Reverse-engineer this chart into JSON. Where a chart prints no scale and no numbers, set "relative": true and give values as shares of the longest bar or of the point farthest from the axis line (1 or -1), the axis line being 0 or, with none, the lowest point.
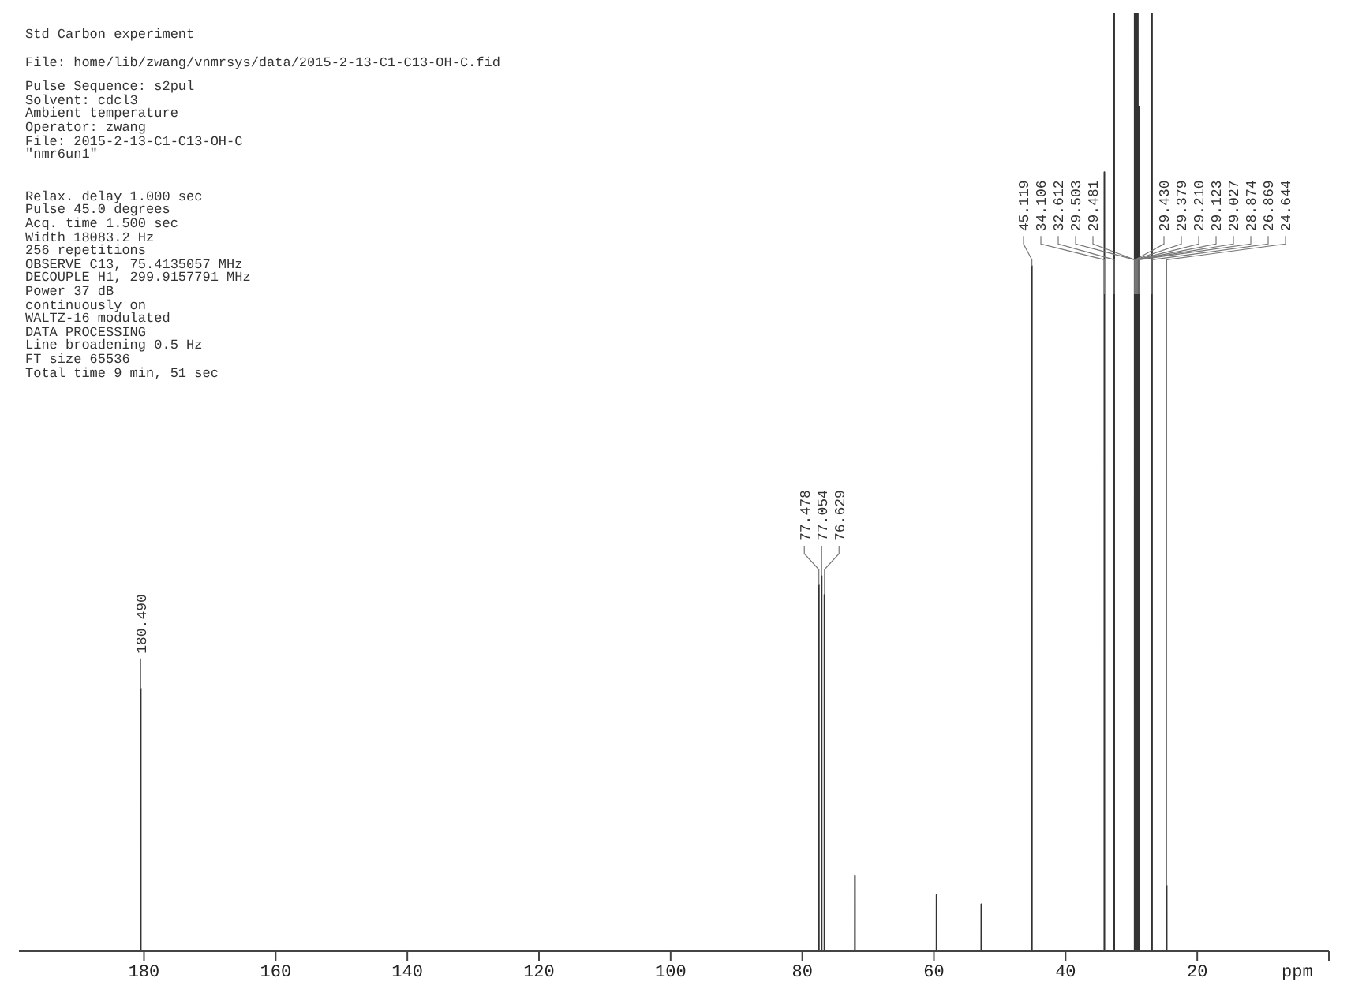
{
  "chart_data": {
    "type": "line",
    "relative": true,
    "xlabel": "ppm",
    "xlim": [
      199,
      0
    ],
    "xticks": [
      180,
      160,
      140,
      120,
      100,
      80,
      60,
      40,
      20,
      {
        "value": 0,
        "label": null
      }
    ],
    "x": [
      199,
      180.495,
      180.49,
      180.485,
      77.483,
      77.478,
      77.473,
      77.059,
      77.054,
      77.049,
      76.634,
      76.629,
      76.624,
      72.005,
      72,
      71.995,
      59.605,
      59.6,
      59.595,
      52.805,
      52.8,
      52.795,
      45.124,
      45.119,
      45.114,
      34.111,
      34.106,
      34.101,
      32.617,
      32.612,
      32.607,
      29.508,
      29.503,
      29.492,
      29.481,
      29.455,
      29.43,
      29.405,
      29.379,
      29.3,
      29.21,
      29.17,
      29.123,
      29.08,
      29.027,
      28.95,
      28.874,
      28.869,
      26.874,
      26.869,
      26.864,
      24.649,
      24.644,
      24.639,
      0
    ],
    "series": [
      {
        "color": "#333333",
        "values": [
          0,
          0,
          0.28,
          0,
          0,
          0.39,
          0,
          0,
          0.4,
          0,
          0,
          0.38,
          0,
          0,
          0.08,
          0,
          0,
          0.06,
          0,
          0,
          0.05,
          0,
          0,
          0.73,
          0,
          0,
          0.83,
          0,
          0,
          1,
          0,
          0,
          1,
          0,
          1,
          0,
          1,
          0,
          1,
          0,
          1,
          0,
          1,
          0,
          1,
          0,
          0.9,
          0,
          0,
          1,
          0,
          0,
          0.07,
          0,
          0
        ]
      }
    ],
    "marker": "none",
    "grid": false,
    "legend": false,
    "annotations": [
      "Std Carbon experiment",
      "File: home/lib/zwang/vnmrsys/data/2015-2-13-C1-C13-OH-C.fid",
      "Pulse Sequence: s2pul",
      "Solvent: cdcl3",
      "Ambient temperature",
      "Operator: zwang",
      "File: 2015-2-13-C1-C13-OH-C",
      "\"nmr6un1\"",
      "Relax. delay 1.000 sec",
      "Pulse 45.0 degrees",
      "Acq. time 1.500 sec",
      "Width 18083.2 Hz",
      "256 repetitions",
      "OBSERVE  C13, 75.4135057 MHz",
      "DECOUPLE  H1, 299.9157791 MHz",
      "Power 37 dB",
      "continuously on",
      "WALTZ-16 modulated",
      "DATA PROCESSING",
      "Line broadening 0.5 Hz",
      "FT size 65536",
      "Total time 9 min, 51 sec",
      {
        "text": "180.490",
        "x": 180.49,
        "y": 0.28
      },
      {
        "text": "77.478",
        "x": 77.478,
        "y": 0.39
      },
      {
        "text": "77.054",
        "x": 77.054,
        "y": 0.4
      },
      {
        "text": "76.629",
        "x": 76.629,
        "y": 0.38
      },
      {
        "text": "45.119",
        "x": 45.119,
        "y": 0.73
      },
      {
        "text": "34.106",
        "x": 34.106,
        "y": 0.7
      },
      {
        "text": "32.612",
        "x": 32.612,
        "y": 0.7
      },
      {
        "text": "29.503",
        "x": 29.503,
        "y": 0.7
      },
      {
        "text": "29.481",
        "x": 29.481,
        "y": 0.7
      },
      {
        "text": "29.430",
        "x": 29.43,
        "y": 0.7
      },
      {
        "text": "29.379",
        "x": 29.379,
        "y": 0.7
      },
      {
        "text": "29.210",
        "x": 29.21,
        "y": 0.7
      },
      {
        "text": "29.123",
        "x": 29.123,
        "y": 0.7
      },
      {
        "text": "29.027",
        "x": 29.027,
        "y": 0.7
      },
      {
        "text": "28.874",
        "x": 28.874,
        "y": 0.7
      },
      {
        "text": "26.869",
        "x": 26.869,
        "y": 0.7
      },
      {
        "text": "24.644",
        "x": 24.644,
        "y": 0.07
      }
    ]
  }
}
